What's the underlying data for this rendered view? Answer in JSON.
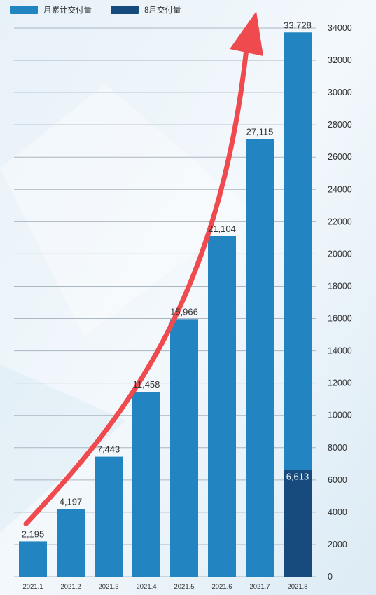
{
  "chart_data": {
    "type": "bar",
    "categories": [
      "2021.1",
      "2021.2",
      "2021.3",
      "2021.4",
      "2021.5",
      "2021.6",
      "2021.7",
      "2021.8"
    ],
    "series": [
      {
        "name": "月累计交付量",
        "values": [
          2195,
          4197,
          7443,
          11458,
          15966,
          21104,
          27115,
          33728
        ]
      },
      {
        "name": "8月交付量",
        "values": [
          null,
          null,
          null,
          null,
          null,
          null,
          null,
          6613
        ]
      }
    ],
    "value_labels": [
      "2,195",
      "4,197",
      "7,443",
      "11,458",
      "15,966",
      "21,104",
      "27,115",
      "33,728"
    ],
    "highlight_label": "6,613",
    "y_ticks": [
      "0",
      "2000",
      "4000",
      "6000",
      "8000",
      "10000",
      "12000",
      "14000",
      "16000",
      "18000",
      "20000",
      "22000",
      "24000",
      "26000",
      "28000",
      "30000",
      "32000",
      "34000"
    ],
    "ylim": [
      0,
      34000
    ],
    "y_axis_position": "right",
    "grid": true,
    "legend_position": "top-left",
    "title": "",
    "xlabel": "",
    "ylabel": "",
    "colors": {
      "cumulative": "#2284c0",
      "monthly": "#174b7e",
      "arrow": "#ef4a4e",
      "grid": "#aab6c0",
      "text": "#333333"
    }
  }
}
